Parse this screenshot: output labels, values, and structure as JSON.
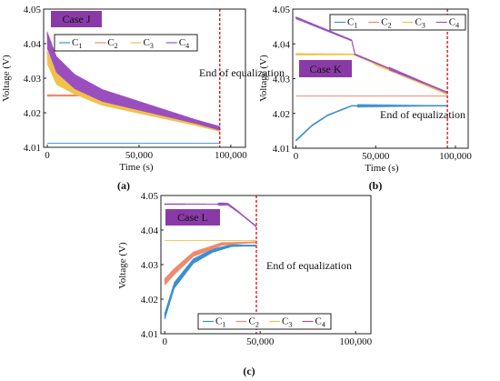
{
  "colors": {
    "c1": "#3a8fd0",
    "c2": "#ee8a6e",
    "c3": "#f1c24a",
    "c4": "#9b4fbf",
    "case_label_bg": "#8a3aa6",
    "equalization_line": "#e11b1b"
  },
  "chart_data": [
    {
      "type": "line",
      "panel_label": "(a)",
      "case_label": "Case J",
      "end_label": "End of equalization",
      "end_x": 94000,
      "xlabel": "Time  (s)",
      "ylabel": "Voltage (V)",
      "xlim": [
        -2000,
        108000
      ],
      "ylim": [
        4.01,
        4.05
      ],
      "xticks": [
        0,
        50000,
        100000
      ],
      "xtick_labels": [
        "0",
        "50,000",
        "100,000"
      ],
      "yticks": [
        4.01,
        4.02,
        4.03,
        4.04,
        4.05
      ],
      "ytick_labels": [
        "4.01",
        "4.02",
        "4.03",
        "4.04",
        "4.05"
      ],
      "legend": [
        "C1",
        "C2",
        "C3",
        "C4"
      ],
      "legend_position": "top",
      "series": [
        {
          "name": "C1",
          "color_key": "c1",
          "x": [
            0,
            94000
          ],
          "y": [
            4.0112,
            4.0112
          ],
          "osc": 0
        },
        {
          "name": "C2",
          "color_key": "c2",
          "x": [
            0,
            30000,
            94000
          ],
          "y": [
            4.025,
            4.025,
            4.0155
          ],
          "osc": 0.0006
        },
        {
          "name": "C3",
          "color_key": "c3",
          "x": [
            0,
            5000,
            15000,
            30000,
            94000
          ],
          "y": [
            4.036,
            4.03,
            4.027,
            4.0235,
            4.015
          ],
          "osc": 0.004
        },
        {
          "name": "C4",
          "color_key": "c4",
          "x": [
            0,
            5000,
            15000,
            30000,
            94000
          ],
          "y": [
            4.041,
            4.034,
            4.029,
            4.025,
            4.0155
          ],
          "osc": 0.005
        }
      ]
    },
    {
      "type": "line",
      "panel_label": "(b)",
      "case_label": "Case K",
      "end_label": "End of equalization",
      "end_x": 95000,
      "xlabel": "Time  (s)",
      "ylabel": "Voltage (V)",
      "xlim": [
        -2000,
        108000
      ],
      "ylim": [
        4.01,
        4.05
      ],
      "xticks": [
        0,
        50000,
        100000
      ],
      "xtick_labels": [
        "0",
        "50,000",
        "100,000"
      ],
      "yticks": [
        4.01,
        4.02,
        4.03,
        4.04,
        4.05
      ],
      "ytick_labels": [
        "4.01",
        "4.02",
        "4.03",
        "4.04",
        "4.05"
      ],
      "legend": [
        "C1",
        "C2",
        "C3",
        "C4"
      ],
      "legend_position": "top",
      "series": [
        {
          "name": "C1",
          "color_key": "c1",
          "x": [
            0,
            10000,
            20000,
            35000,
            36000,
            95000
          ],
          "y": [
            4.0122,
            4.0165,
            4.0195,
            4.0222,
            4.0222,
            4.0222
          ],
          "osc": 0.0005
        },
        {
          "name": "C2",
          "color_key": "c2",
          "x": [
            0,
            95000
          ],
          "y": [
            4.025,
            4.025
          ],
          "osc": 0
        },
        {
          "name": "C3",
          "color_key": "c3",
          "x": [
            0,
            36000,
            95000
          ],
          "y": [
            4.037,
            4.037,
            4.0255
          ],
          "osc": 0.0006
        },
        {
          "name": "C4",
          "color_key": "c4",
          "x": [
            0,
            35000,
            37000,
            95000
          ],
          "y": [
            4.0475,
            4.041,
            4.037,
            4.026
          ],
          "osc": 0.0007
        }
      ]
    },
    {
      "type": "line",
      "panel_label": "(c)",
      "case_label": "Case L",
      "end_label": "End of equalization",
      "end_x": 48000,
      "xlabel": "",
      "ylabel": "Voltage (V)",
      "xlim": [
        -2000,
        108000
      ],
      "ylim": [
        4.01,
        4.05
      ],
      "xticks": [
        0,
        50000,
        100000
      ],
      "xtick_labels": [
        "0",
        "50,000",
        "100,000"
      ],
      "yticks": [
        4.01,
        4.02,
        4.03,
        4.04,
        4.05
      ],
      "ytick_labels": [
        "4.01",
        "4.02",
        "4.03",
        "4.04",
        "4.05"
      ],
      "legend": [
        "C1",
        "C2",
        "C3",
        "C4"
      ],
      "legend_position": "bottom",
      "series": [
        {
          "name": "C1",
          "color_key": "c1",
          "x": [
            0,
            5000,
            15000,
            25000,
            35000,
            48000
          ],
          "y": [
            4.015,
            4.024,
            4.031,
            4.034,
            4.0355,
            4.0355
          ],
          "osc": 0.002
        },
        {
          "name": "C2",
          "color_key": "c2",
          "x": [
            0,
            5000,
            15000,
            30000,
            48000
          ],
          "y": [
            4.025,
            4.028,
            4.033,
            4.036,
            4.0365
          ],
          "osc": 0.002
        },
        {
          "name": "C3",
          "color_key": "c3",
          "x": [
            0,
            48000
          ],
          "y": [
            4.037,
            4.037
          ],
          "osc": 0
        },
        {
          "name": "C4",
          "color_key": "c4",
          "x": [
            0,
            33000,
            38000,
            48000
          ],
          "y": [
            4.0475,
            4.0475,
            4.0455,
            4.041
          ],
          "osc": 0.0004
        }
      ]
    }
  ]
}
